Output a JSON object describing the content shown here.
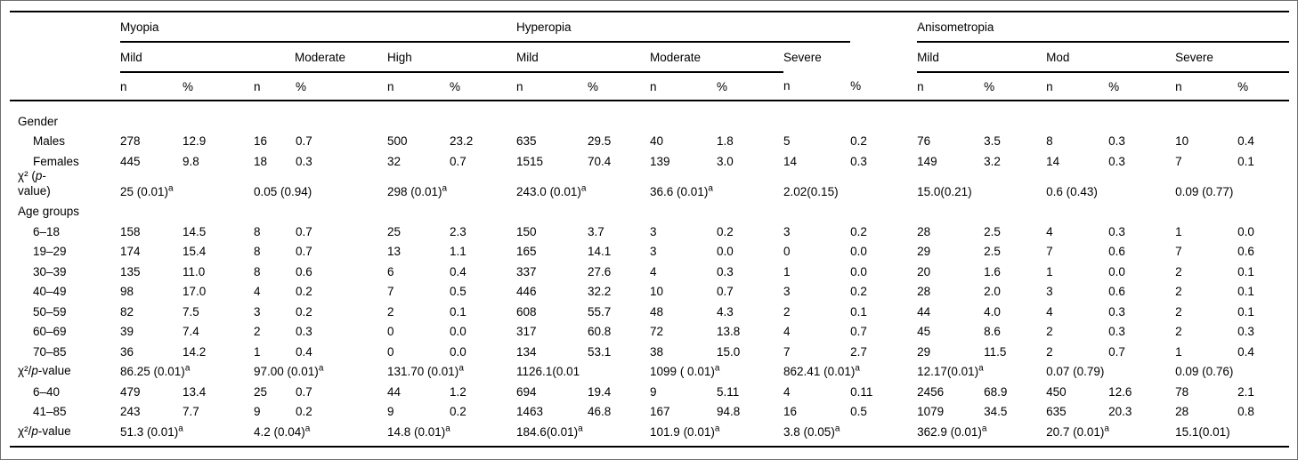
{
  "table": {
    "groups": [
      {
        "name": "Myopia",
        "severities": [
          {
            "label": "Mild"
          },
          {
            "label": "Moderate"
          },
          {
            "label": "High"
          }
        ]
      },
      {
        "name": "Hyperopia",
        "severities": [
          {
            "label": "Mild"
          },
          {
            "label": "Moderate"
          },
          {
            "label": "Severe"
          }
        ]
      },
      {
        "name": "Anisometropia",
        "severities": [
          {
            "label": "Mild"
          },
          {
            "label": "Mod"
          },
          {
            "label": "Severe"
          }
        ]
      }
    ],
    "subcols": {
      "n": "n",
      "pct": "%"
    },
    "rows": [
      {
        "type": "section",
        "label": "Gender"
      },
      {
        "type": "data",
        "label": "Males",
        "indent": true,
        "cells": [
          "278",
          "12.9",
          "16",
          "0.7",
          "500",
          "23.2",
          "635",
          "29.5",
          "40",
          "1.8",
          "5",
          "0.2",
          "76",
          "3.5",
          "8",
          "0.3",
          "10",
          "0.4"
        ]
      },
      {
        "type": "data",
        "label": "Females",
        "indent": true,
        "cells": [
          "445",
          "9.8",
          "18",
          "0.3",
          "32",
          "0.7",
          "1515",
          "70.4",
          "139",
          "3.0",
          "14",
          "0.3",
          "149",
          "3.2",
          "14",
          "0.3",
          "7",
          "0.1"
        ]
      },
      {
        "type": "stat",
        "label": "χ² (p-\nvalue)",
        "cells": [
          "25 (0.01)^a",
          "0.05 (0.94)",
          "298 (0.01)^a",
          "243.0 (0.01)^a",
          "36.6 (0.01)^a",
          "2.02(0.15)",
          "15.0(0.21)",
          "0.6 (0.43)",
          "0.09 (0.77)"
        ]
      },
      {
        "type": "section",
        "label": "Age groups"
      },
      {
        "type": "data",
        "label": "6–18",
        "indent": true,
        "cells": [
          "158",
          "14.5",
          "8",
          "0.7",
          "25",
          "2.3",
          "150",
          "3.7",
          "3",
          "0.2",
          "3",
          "0.2",
          "28",
          "2.5",
          "4",
          "0.3",
          "1",
          "0.0"
        ]
      },
      {
        "type": "data",
        "label": "19–29",
        "indent": true,
        "cells": [
          "174",
          "15.4",
          "8",
          "0.7",
          "13",
          "1.1",
          "165",
          "14.1",
          "3",
          "0.0",
          "0",
          "0.0",
          "29",
          "2.5",
          "7",
          "0.6",
          "7",
          "0.6"
        ]
      },
      {
        "type": "data",
        "label": "30–39",
        "indent": true,
        "cells": [
          "135",
          "11.0",
          "8",
          "0.6",
          "6",
          "0.4",
          "337",
          "27.6",
          "4",
          "0.3",
          "1",
          "0.0",
          "20",
          "1.6",
          "1",
          "0.0",
          "2",
          "0.1"
        ]
      },
      {
        "type": "data",
        "label": "40–49",
        "indent": true,
        "cells": [
          "98",
          "17.0",
          "4",
          "0.2",
          "7",
          "0.5",
          "446",
          "32.2",
          "10",
          "0.7",
          "3",
          "0.2",
          "28",
          "2.0",
          "3",
          "0.6",
          "2",
          "0.1"
        ]
      },
      {
        "type": "data",
        "label": "50–59",
        "indent": true,
        "cells": [
          "82",
          "7.5",
          "3",
          "0.2",
          "2",
          "0.1",
          "608",
          "55.7",
          "48",
          "4.3",
          "2",
          "0.1",
          "44",
          "4.0",
          "4",
          "0.3",
          "2",
          "0.1"
        ]
      },
      {
        "type": "data",
        "label": "60–69",
        "indent": true,
        "cells": [
          "39",
          "7.4",
          "2",
          "0.3",
          "0",
          "0.0",
          "317",
          "60.8",
          "72",
          "13.8",
          "4",
          "0.7",
          "45",
          "8.6",
          "2",
          "0.3",
          "2",
          "0.3"
        ]
      },
      {
        "type": "data",
        "label": "70–85",
        "indent": true,
        "cells": [
          "36",
          "14.2",
          "1",
          "0.4",
          "0",
          "0.0",
          "134",
          "53.1",
          "38",
          "15.0",
          "7",
          "2.7",
          "29",
          "11.5",
          "2",
          "0.7",
          "1",
          "0.4"
        ]
      },
      {
        "type": "stat",
        "label": "χ²/p-value",
        "cells": [
          "86.25 (0.01)^a",
          "97.00 (0.01)^a",
          "131.70 (0.01)^a",
          "1126.1(0.01",
          "1099 ( 0.01)^a",
          "862.41 (0.01)^a",
          "12.17(0.01)^a",
          "0.07 (0.79)",
          "0.09 (0.76)"
        ]
      },
      {
        "type": "data",
        "label": "6–40",
        "indent": true,
        "cells": [
          "479",
          "13.4",
          "25",
          "0.7",
          "44",
          "1.2",
          "694",
          "19.4",
          "9",
          "5.11",
          "4",
          "0.11",
          "2456",
          "68.9",
          "450",
          "12.6",
          "78",
          "2.1"
        ]
      },
      {
        "type": "data",
        "label": "41–85",
        "indent": true,
        "cells": [
          "243",
          "7.7",
          "9",
          "0.2",
          "9",
          "0.2",
          "1463",
          "46.8",
          "167",
          "94.8",
          "16",
          "0.5",
          "1079",
          "34.5",
          "635",
          "20.3",
          "28",
          "0.8"
        ]
      },
      {
        "type": "stat",
        "label": "χ²/p-value",
        "cells": [
          "51.3 (0.01)^a",
          "4.2 (0.04)^a",
          "14.8 (0.01)^a",
          "184.6(0.01)^a",
          "101.9 (0.01)^a",
          "3.8 (0.05)^a",
          "362.9 (0.01)^a",
          "20.7 (0.01)^a",
          "15.1(0.01)"
        ]
      }
    ]
  }
}
